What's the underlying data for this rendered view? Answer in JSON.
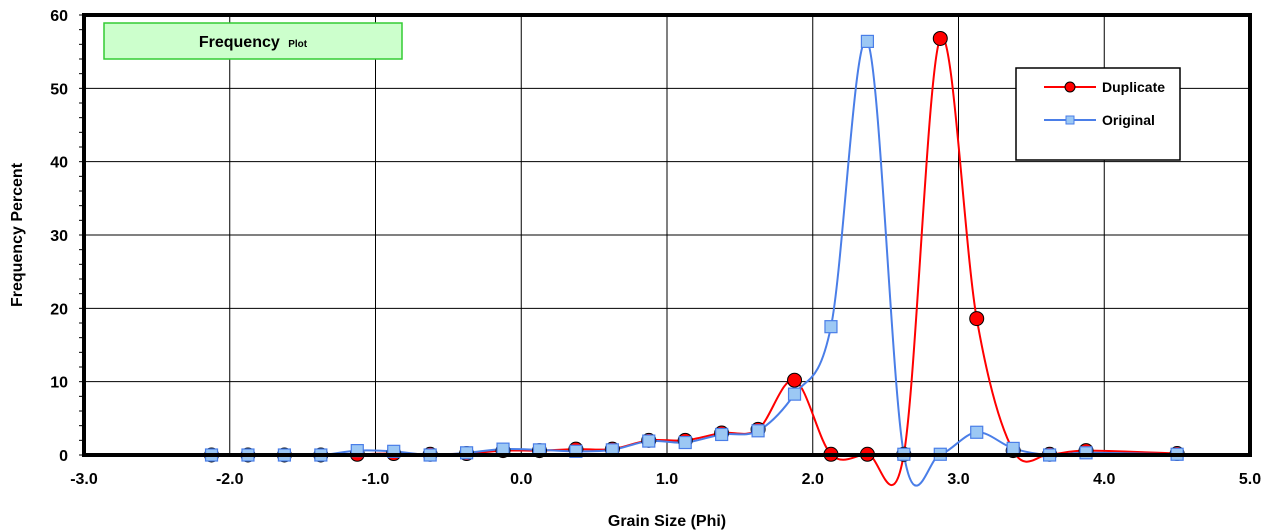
{
  "chart_data": {
    "type": "line",
    "title": "Frequency",
    "subtitle": "Plot",
    "xlabel": "Grain Size (Phi)",
    "ylabel": "Frequency Percent",
    "xlim": [
      -3.0,
      5.0
    ],
    "ylim": [
      0,
      60
    ],
    "xticks": [
      "-3.0",
      "-2.0",
      "-1.0",
      "0.0",
      "1.0",
      "2.0",
      "3.0",
      "4.0",
      "5.0"
    ],
    "yticks": [
      "0",
      "10",
      "20",
      "30",
      "40",
      "50",
      "60"
    ],
    "grid": true,
    "legend_position": "top-right",
    "series": [
      {
        "name": "Duplicate",
        "color": "#ff0000",
        "marker": "circle",
        "marker_fill": "#ff0000",
        "x": [
          -2.125,
          -1.875,
          -1.625,
          -1.375,
          -1.125,
          -0.875,
          -0.625,
          -0.375,
          -0.125,
          0.125,
          0.375,
          0.625,
          0.875,
          1.125,
          1.375,
          1.625,
          1.875,
          2.125,
          2.375,
          2.625,
          2.875,
          3.125,
          3.375,
          3.625,
          3.875,
          4.5
        ],
        "y": [
          0.0,
          0.0,
          0.0,
          0.0,
          0.1,
          0.2,
          0.1,
          0.2,
          0.6,
          0.6,
          0.8,
          0.8,
          2.0,
          2.0,
          3.0,
          3.5,
          10.2,
          0.1,
          0.1,
          0.1,
          56.8,
          18.6,
          0.6,
          0.1,
          0.6,
          0.2
        ]
      },
      {
        "name": "Original",
        "color": "#4a7ee8",
        "marker": "square",
        "marker_fill": "#9cc8f4",
        "x": [
          -2.125,
          -1.875,
          -1.625,
          -1.375,
          -1.125,
          -0.875,
          -0.625,
          -0.375,
          -0.125,
          0.125,
          0.375,
          0.625,
          0.875,
          1.125,
          1.375,
          1.625,
          1.875,
          2.125,
          2.375,
          2.625,
          2.875,
          3.125,
          3.375,
          3.625,
          3.875,
          4.5
        ],
        "y": [
          0.0,
          0.0,
          0.0,
          0.0,
          0.6,
          0.5,
          0.0,
          0.3,
          0.8,
          0.7,
          0.5,
          0.7,
          1.9,
          1.7,
          2.8,
          3.3,
          8.3,
          17.5,
          56.4,
          0.1,
          0.1,
          3.1,
          0.9,
          0.0,
          0.3,
          0.1
        ]
      }
    ]
  },
  "colors": {
    "title_box_fill": "#ccffcc",
    "title_box_stroke": "#33cc33",
    "grid": "#000000"
  }
}
